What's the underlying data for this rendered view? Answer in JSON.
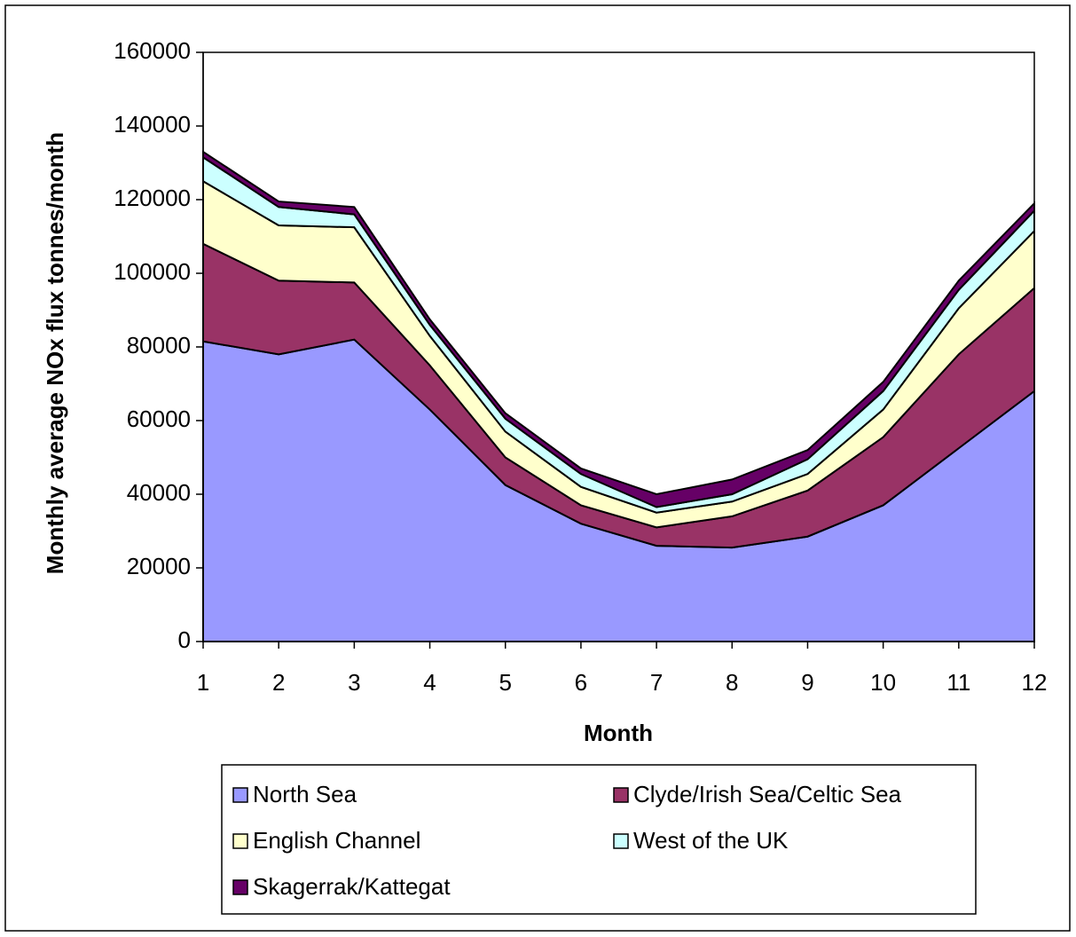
{
  "chart_data": {
    "type": "stacked_area",
    "x_label": "Month",
    "y_label": "Monthly average NOx flux tonnes/month",
    "x": [
      1,
      2,
      3,
      4,
      5,
      6,
      7,
      8,
      9,
      10,
      11,
      12
    ],
    "xlim": [
      1,
      12
    ],
    "xticks": [
      1,
      2,
      3,
      4,
      5,
      6,
      7,
      8,
      9,
      10,
      11,
      12
    ],
    "ylim": [
      0,
      160000
    ],
    "yticks": [
      0,
      20000,
      40000,
      60000,
      80000,
      100000,
      120000,
      140000,
      160000
    ],
    "grid": false,
    "legend": "bottom",
    "series": [
      {
        "name": "North Sea",
        "color": "#9999ff",
        "values": [
          81500,
          78000,
          82000,
          63000,
          42500,
          32000,
          26000,
          25500,
          28500,
          37000,
          52500,
          68000
        ]
      },
      {
        "name": "Clyde/Irish Sea/Celtic Sea",
        "color": "#993366",
        "values": [
          26500,
          20000,
          15500,
          12000,
          7500,
          5000,
          5000,
          8500,
          12500,
          18500,
          25500,
          28000
        ]
      },
      {
        "name": "English Channel",
        "color": "#ffffcc",
        "values": [
          17000,
          15000,
          15000,
          8000,
          7000,
          5000,
          4000,
          4000,
          4500,
          7500,
          12500,
          15500
        ]
      },
      {
        "name": "West of the UK",
        "color": "#ccffff",
        "values": [
          6500,
          5000,
          3500,
          3000,
          3500,
          3500,
          1500,
          2000,
          4000,
          5000,
          5000,
          5500
        ]
      },
      {
        "name": "Skagerrak/Kattegat",
        "color": "#660066",
        "values": [
          1500,
          1500,
          2000,
          1500,
          1500,
          1500,
          3500,
          4000,
          2500,
          2500,
          2500,
          2000
        ]
      }
    ]
  }
}
